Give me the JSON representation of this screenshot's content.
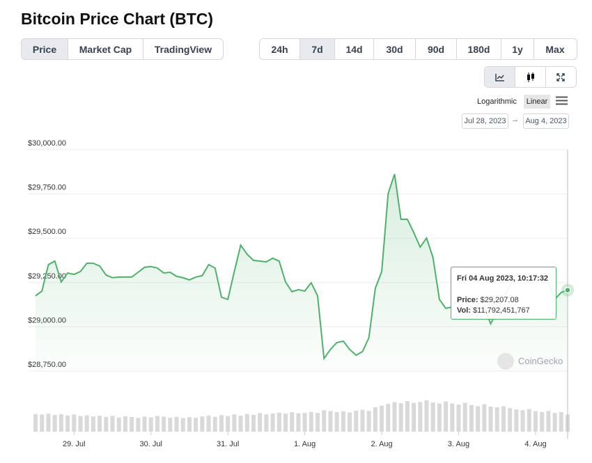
{
  "header": {
    "title": "Bitcoin Price Chart (BTC)"
  },
  "tabs": [
    "Price",
    "Market Cap",
    "TradingView"
  ],
  "ranges": [
    "24h",
    "7d",
    "14d",
    "30d",
    "90d",
    "180d",
    "1y",
    "Max"
  ],
  "scale_options": [
    "Logarithmic",
    "Linear"
  ],
  "date_range": {
    "from": "Jul 28, 2023",
    "to": "Aug 4, 2023"
  },
  "chart_data": {
    "type": "line",
    "color": "#4eb16a",
    "categories": [
      null,
      null,
      null,
      null,
      null,
      null,
      null,
      null,
      null,
      null,
      null,
      null,
      null,
      null,
      null,
      null,
      null,
      null,
      null,
      null,
      null,
      null,
      null,
      null,
      null,
      null,
      null,
      null,
      null,
      null,
      null,
      null,
      null,
      null,
      null,
      null,
      null,
      null,
      null,
      null,
      null,
      null,
      null,
      null,
      null,
      null,
      null,
      null,
      null,
      null,
      null,
      null,
      null,
      null,
      null,
      null,
      null,
      null,
      null,
      null,
      null,
      null,
      null,
      null,
      null,
      null,
      null,
      null,
      null,
      null,
      null,
      null,
      null,
      null,
      null,
      null,
      null,
      null,
      null,
      null,
      null,
      null,
      null,
      null
    ],
    "values": [
      29175,
      29202,
      29351,
      29371,
      29253,
      29304,
      29296,
      29312,
      29359,
      29359,
      29343,
      29292,
      29277,
      29281,
      29281,
      29281,
      29308,
      29336,
      29340,
      29332,
      29304,
      29308,
      29285,
      29277,
      29265,
      29281,
      29289,
      29351,
      29332,
      29167,
      29155,
      29312,
      29461,
      29410,
      29375,
      29371,
      29367,
      29387,
      29371,
      29253,
      29198,
      29210,
      29202,
      29249,
      29175,
      28821,
      28872,
      28911,
      28919,
      28872,
      28840,
      28860,
      28939,
      29218,
      29312,
      29752,
      29862,
      29607,
      29607,
      29532,
      29450,
      29501,
      29391,
      29155,
      29104,
      29112,
      29163,
      29147,
      29108,
      29104,
      29112,
      29017,
      29088,
      29167,
      29234,
      29304,
      29265,
      29257,
      29300,
      29257,
      29249,
      29155,
      29194,
      29207.08
    ],
    "volume": [
      12100000000,
      11800000000,
      12400000000,
      11500000000,
      12000000000,
      11200000000,
      11900000000,
      10800000000,
      11300000000,
      10500000000,
      11000000000,
      10200000000,
      10900000000,
      9800000000,
      10600000000,
      10100000000,
      9500000000,
      10400000000,
      9900000000,
      10800000000,
      10300000000,
      9700000000,
      10200000000,
      9400000000,
      10000000000,
      9600000000,
      10500000000,
      11100000000,
      10200000000,
      11400000000,
      10800000000,
      11900000000,
      11000000000,
      12200000000,
      11600000000,
      12800000000,
      11900000000,
      12500000000,
      13100000000,
      12400000000,
      13400000000,
      12700000000,
      13000000000,
      13600000000,
      12900000000,
      14800000000,
      14200000000,
      13500000000,
      14000000000,
      13200000000,
      14500000000,
      15100000000,
      14300000000,
      16800000000,
      17900000000,
      19200000000,
      20400000000,
      19600000000,
      21000000000,
      19800000000,
      20500000000,
      21600000000,
      20100000000,
      19400000000,
      20800000000,
      19500000000,
      18700000000,
      19900000000,
      18400000000,
      17600000000,
      18900000000,
      17300000000,
      16800000000,
      17500000000,
      16200000000,
      15400000000,
      14800000000,
      15600000000,
      14100000000,
      13600000000,
      14300000000,
      12900000000,
      13500000000,
      11792451767
    ],
    "volume_color": "#d9d9d9",
    "ylim": [
      28750,
      30000
    ],
    "yticks": [
      {
        "value": 28750,
        "label": "$28,750.00"
      },
      {
        "value": 29000,
        "label": "$29,000.00"
      },
      {
        "value": 29250,
        "label": "$29,250.00"
      },
      {
        "value": 29500,
        "label": "$29,500.00"
      },
      {
        "value": 29750,
        "label": "$29,750.00"
      },
      {
        "value": 30000,
        "label": "$30,000.00"
      }
    ],
    "xlim": [
      -1.2,
      83
    ],
    "xticks": [
      {
        "value": 6,
        "label": "29. Jul"
      },
      {
        "value": 18,
        "label": "30. Jul"
      },
      {
        "value": 30,
        "label": "31. Jul"
      },
      {
        "value": 42,
        "label": "1. Aug"
      },
      {
        "value": 54,
        "label": "2. Aug"
      },
      {
        "value": 66,
        "label": "3. Aug"
      },
      {
        "value": 78,
        "label": "4. Aug"
      }
    ],
    "grid": true
  },
  "tooltip": {
    "title": "Fri 04 Aug 2023, 10:17:32",
    "price_label": "Price:",
    "price": "$29,207.08",
    "vol_label": "Vol:",
    "vol": "$11,792,451,767"
  },
  "watermark": "CoinGecko"
}
